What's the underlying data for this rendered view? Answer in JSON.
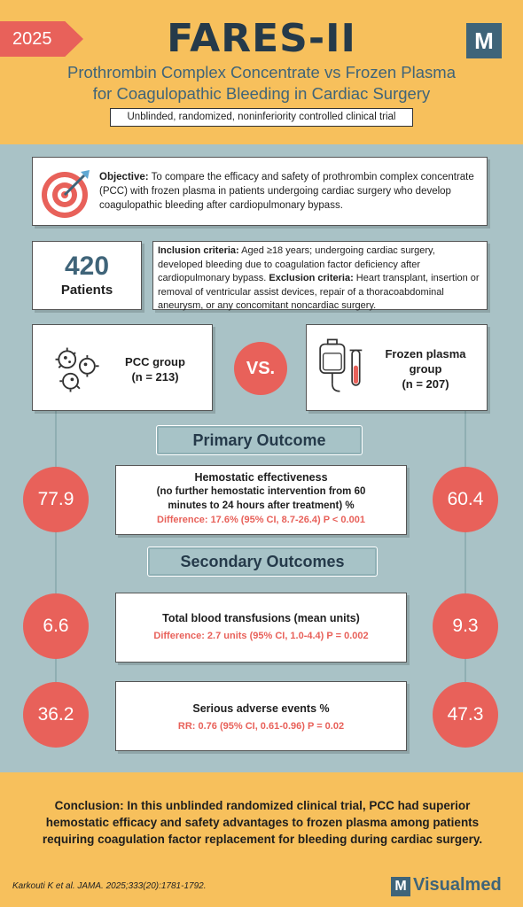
{
  "header": {
    "year": "2025",
    "title": "FARES-II",
    "logo_letter": "M",
    "subtitle_line1": "Prothrombin Complex Concentrate vs Frozen Plasma",
    "subtitle_line2": "for Coagulopathic Bleeding in Cardiac Surgery",
    "design": "Unblinded, randomized, noninferiority controlled clinical trial"
  },
  "objective": {
    "label": "Objective:",
    "text": "To compare the efficacy and safety of prothrombin complex concentrate (PCC) with frozen plasma in patients undergoing cardiac surgery who develop coagulopathic bleeding after cardiopulmonary bypass.",
    "icon": "target-icon"
  },
  "patients": {
    "count": "420",
    "label": "Patients"
  },
  "criteria": {
    "inclusion_label": "Inclusion criteria:",
    "inclusion_text": "Aged ≥18 years; undergoing cardiac surgery, developed bleeding due to coagulation factor deficiency after cardiopulmonary bypass.",
    "exclusion_label": "Exclusion criteria:",
    "exclusion_text": "Heart transplant, insertion or removal of ventricular assist devices, repair of a thoracoabdominal aneurysm, or any concomitant noncardiac surgery."
  },
  "groups": {
    "pcc_label": "PCC group",
    "pcc_n": "(n = 213)",
    "vs": "VS.",
    "ffp_label_1": "Frozen plasma",
    "ffp_label_2": "group",
    "ffp_n": "(n = 207)"
  },
  "primary": {
    "heading": "Primary Outcome",
    "title_1": "Hemostatic effectiveness",
    "title_2": "(no further hemostatic intervention from 60",
    "title_3": "minutes to 24 hours after treatment) %",
    "difference": "Difference: 17.6% (95% CI, 8.7-26.4) P < 0.001",
    "pcc_value": "77.9",
    "ffp_value": "60.4"
  },
  "secondary": {
    "heading": "Secondary Outcomes",
    "items": [
      {
        "title": "Total blood transfusions (mean units)",
        "difference": "Difference: 2.7 units (95% CI, 1.0-4.4) P = 0.002",
        "pcc_value": "6.6",
        "ffp_value": "9.3"
      },
      {
        "title": "Serious adverse events %",
        "difference": "RR: 0.76 (95% CI, 0.61-0.96) P = 0.02",
        "pcc_value": "36.2",
        "ffp_value": "47.3"
      }
    ]
  },
  "conclusion": {
    "label": "Conclusion:",
    "text": "In this unblinded randomized clinical trial, PCC had superior hemostatic efficacy and safety advantages to frozen plasma among patients requiring coagulation factor replacement for bleeding during cardiac surgery."
  },
  "footer": {
    "citation": "Karkouti K et al.  JAMA. 2025;333(20):1781-1792.",
    "brand_letter": "M",
    "brand_name": "Visualmed"
  },
  "colors": {
    "accent": "#e8615a",
    "header_bg": "#f7c05c",
    "body_bg": "#a9c2c6",
    "navy": "#253a4a",
    "slate": "#3f6479"
  }
}
